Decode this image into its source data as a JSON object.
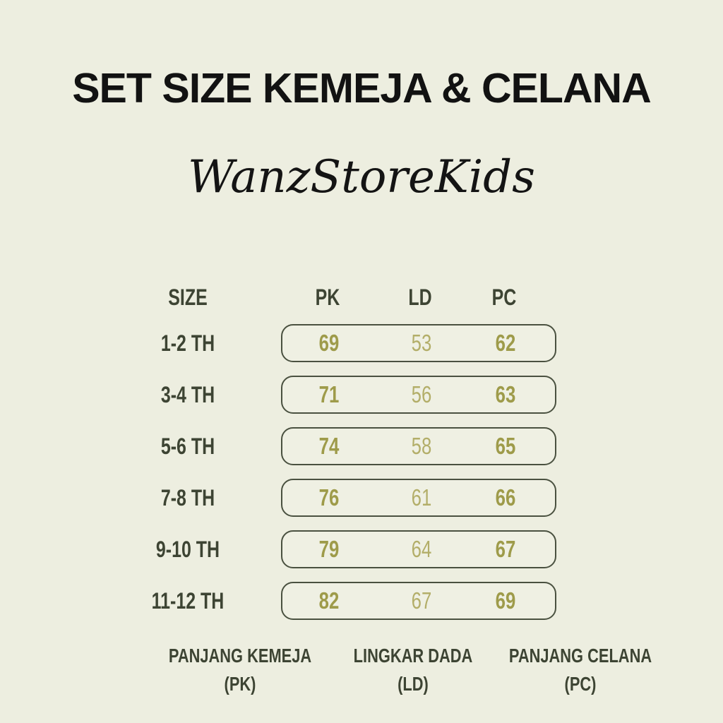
{
  "title": "SET SIZE KEMEJA & CELANA",
  "brand": "WanzStoreKids",
  "table": {
    "size_header": "SIZE",
    "columns": [
      "PK",
      "LD",
      "PC"
    ],
    "rows": [
      {
        "size": "1-2 TH",
        "pk": "69",
        "ld": "53",
        "pc": "62"
      },
      {
        "size": "3-4 TH",
        "pk": "71",
        "ld": "56",
        "pc": "63"
      },
      {
        "size": "5-6 TH",
        "pk": "74",
        "ld": "58",
        "pc": "65"
      },
      {
        "size": "7-8 TH",
        "pk": "76",
        "ld": "61",
        "pc": "66"
      },
      {
        "size": "9-10 TH",
        "pk": "79",
        "ld": "64",
        "pc": "67"
      },
      {
        "size": "11-12 TH",
        "pk": "82",
        "ld": "67",
        "pc": "69"
      }
    ]
  },
  "legend": [
    {
      "name": "PANJANG KEMEJA",
      "abbr": "(PK)"
    },
    {
      "name": "LINGKAR DADA",
      "abbr": "(LD)"
    },
    {
      "name": "PANJANG CELANA",
      "abbr": "(PC)"
    }
  ],
  "colors": {
    "background": "#edeee0",
    "title_text": "#121212",
    "header_text": "#3d4433",
    "box_border": "#4a5140",
    "value_bold": "#9e9b4a",
    "value_light": "#b3ae69"
  },
  "chart_data": {
    "type": "table",
    "title": "SET SIZE KEMEJA & CELANA",
    "categories": [
      "1-2 TH",
      "3-4 TH",
      "5-6 TH",
      "7-8 TH",
      "9-10 TH",
      "11-12 TH"
    ],
    "series": [
      {
        "name": "PK",
        "values": [
          69,
          71,
          74,
          76,
          79,
          82
        ]
      },
      {
        "name": "LD",
        "values": [
          53,
          56,
          58,
          61,
          64,
          67
        ]
      },
      {
        "name": "PC",
        "values": [
          62,
          63,
          65,
          66,
          67,
          69
        ]
      }
    ]
  }
}
